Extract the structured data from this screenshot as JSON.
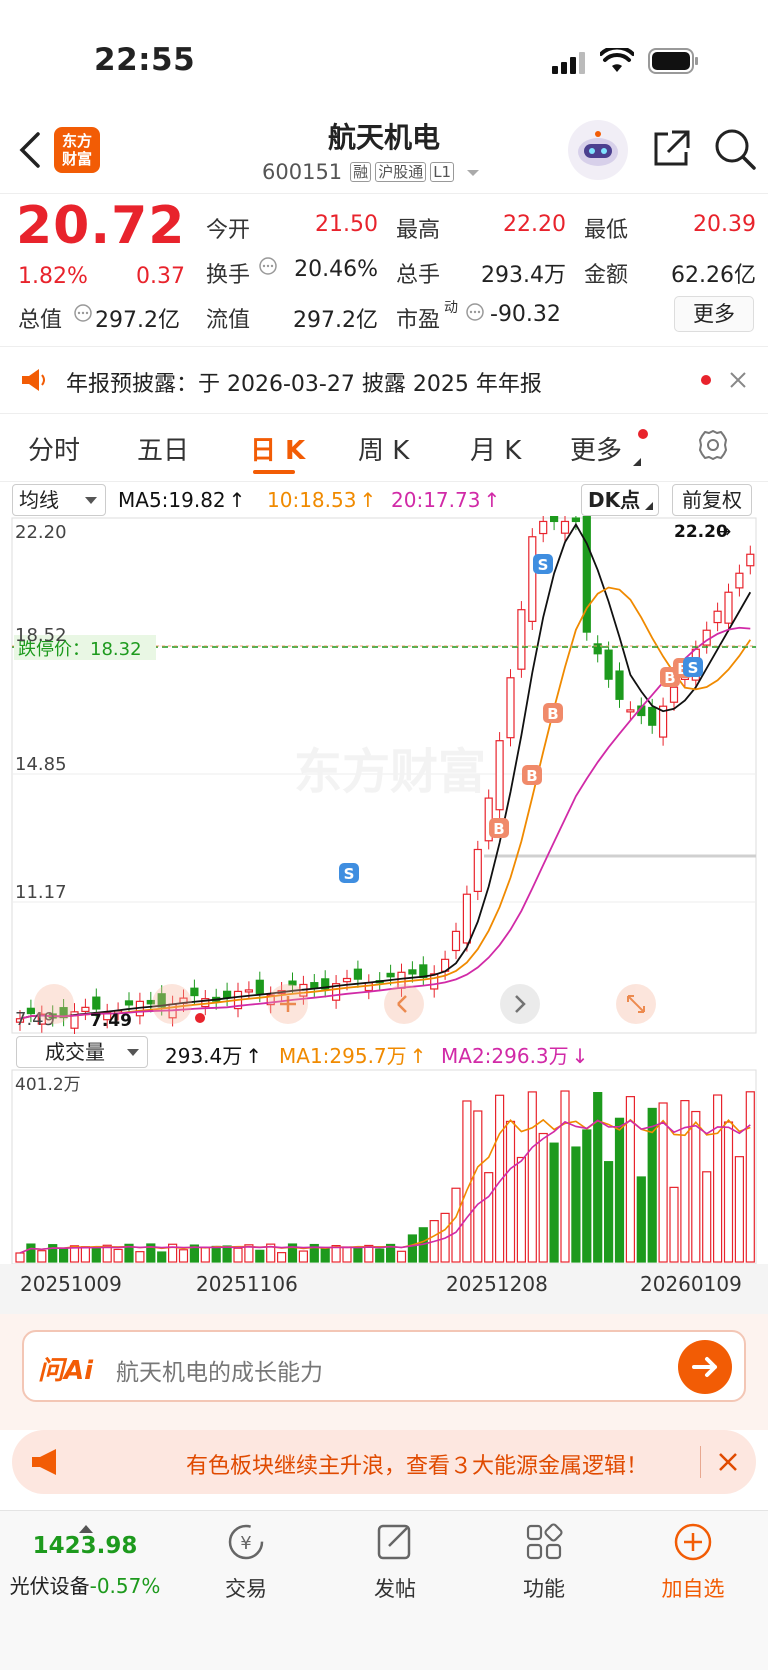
{
  "status_bar": {
    "time": "22:55"
  },
  "header": {
    "app_logo_text": "东方\n财富",
    "stock_name": "航天机电",
    "stock_code": "600151",
    "tags": [
      "融",
      "沪股通",
      "L1"
    ]
  },
  "quote": {
    "price": "20.72",
    "change_pct": "1.82%",
    "change": "0.37",
    "fields": [
      {
        "label": "今开",
        "value": "21.50"
      },
      {
        "label": "最高",
        "value": "22.20"
      },
      {
        "label": "最低",
        "value": "20.39"
      },
      {
        "label": "换手",
        "value": "20.46%"
      },
      {
        "label": "总手",
        "value": "293.4万"
      },
      {
        "label": "金额",
        "value": "62.26亿"
      },
      {
        "label": "总值",
        "value": "297.2亿"
      },
      {
        "label": "流值",
        "value": "297.2亿"
      },
      {
        "label": "市盈",
        "sup": "动",
        "value": "-90.32"
      }
    ],
    "more_button": "更多"
  },
  "notice": {
    "text": "年报预披露：于 2026-03-27 披露 2025 年年报"
  },
  "tabs": [
    "分时",
    "五日",
    "日 K",
    "周 K",
    "月 K",
    "更多"
  ],
  "active_tab": "日 K",
  "chart_toolbar": {
    "indicator_select": "均线",
    "ma5": "MA5:19.82",
    "ma10": "10:18.53",
    "ma20": "20:17.73",
    "dk_button": "DK点",
    "adjust_button": "前复权"
  },
  "chart_labels": {
    "y_ticks": [
      "22.20",
      "18.52",
      "14.85",
      "11.17",
      "7.49"
    ],
    "high_marker": "22.20",
    "low_marker": "7.49",
    "limit_down": "跌停价：18.32",
    "watermark": "东方财富"
  },
  "volume_toolbar": {
    "indicator_select": "成交量",
    "volume": "293.4万",
    "ma1": "MA1:295.7万",
    "ma2": "MA2:296.3万",
    "max_label": "401.2万"
  },
  "x_dates": [
    "20251009",
    "20251106",
    "20251208",
    "20260109"
  ],
  "colors": {
    "up": "#e8232c",
    "down": "#1d9a1d",
    "ma5": "#111111",
    "ma10": "#f08a00",
    "ma20": "#d12aa7",
    "accent": "#f25c05"
  },
  "ask_ai": {
    "logo": "问Ai",
    "placeholder": "航天机电的成长能力"
  },
  "banner": {
    "text": "有色板块继续主升浪，查看３大能源金属逻辑！"
  },
  "bottom_nav": {
    "index_value": "1423.98",
    "index_name": "光伏设备",
    "index_change": "-0.57%",
    "items": [
      {
        "label": "交易",
        "icon": "trade-icon"
      },
      {
        "label": "发帖",
        "icon": "post-icon"
      },
      {
        "label": "功能",
        "icon": "apps-icon"
      },
      {
        "label": "加自选",
        "icon": "add-favorite-icon"
      }
    ]
  }
}
